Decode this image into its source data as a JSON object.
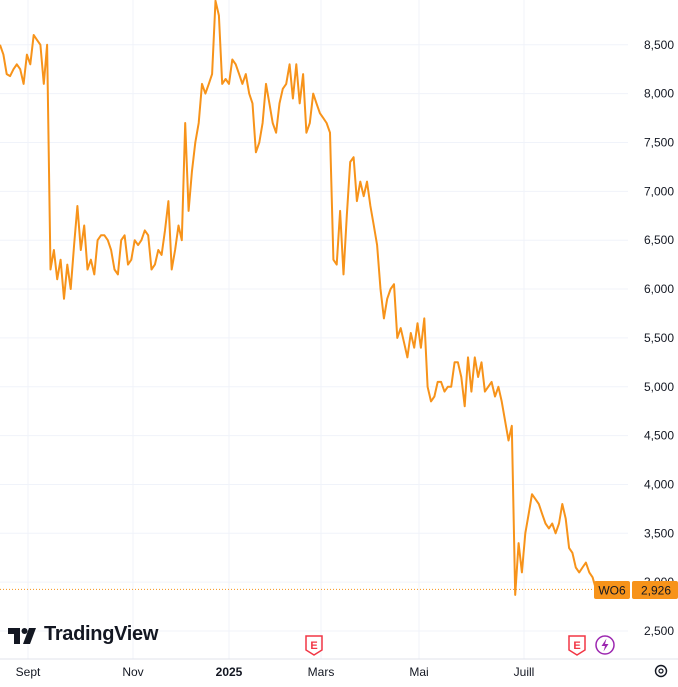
{
  "branding": {
    "logo_text": "TradingView"
  },
  "price_tag": {
    "symbol": "WO6",
    "value": "2,926"
  },
  "colors": {
    "line": "#f7931a",
    "grid": "#f0f3fa",
    "tag_bg": "#f7931a",
    "text": "#131722",
    "event_red": "#f23645",
    "event_purple": "#9c27b0"
  },
  "event_markers": [
    {
      "label": "E",
      "date": "Mars"
    },
    {
      "label": "E",
      "date": "Juill"
    }
  ],
  "chart_data": {
    "type": "line",
    "title": "",
    "xlabel": "",
    "ylabel": "",
    "ylim": [
      2350,
      8950
    ],
    "y_ticks": [
      "2,500",
      "3,000",
      "3,500",
      "4,000",
      "4,500",
      "5,000",
      "5,500",
      "6,000",
      "6,500",
      "7,000",
      "7,500",
      "8,000",
      "8,500"
    ],
    "y_tick_values": [
      2500,
      3000,
      3500,
      4000,
      4500,
      5000,
      5500,
      6000,
      6500,
      7000,
      7500,
      8000,
      8500
    ],
    "x_ticks": [
      {
        "label": "Sept",
        "bold": false
      },
      {
        "label": "Nov",
        "bold": false
      },
      {
        "label": "2025",
        "bold": true
      },
      {
        "label": "Mars",
        "bold": false
      },
      {
        "label": "Mai",
        "bold": false
      },
      {
        "label": "Juill",
        "bold": false
      }
    ],
    "grid": true,
    "last_value": 2926,
    "series": [
      {
        "values": [
          8500,
          8400,
          8200,
          8180,
          8250,
          8300,
          8250,
          8100,
          8400,
          8300,
          8600,
          8550,
          8500,
          8100,
          8500,
          6200,
          6400,
          6100,
          6300,
          5900,
          6250,
          6000,
          6450,
          6850,
          6400,
          6650,
          6200,
          6300,
          6150,
          6500,
          6550,
          6550,
          6500,
          6400,
          6200,
          6150,
          6500,
          6550,
          6250,
          6300,
          6500,
          6450,
          6500,
          6600,
          6550,
          6200,
          6250,
          6400,
          6350,
          6600,
          6900,
          6200,
          6400,
          6650,
          6500,
          7700,
          6800,
          7200,
          7500,
          7700,
          8100,
          8000,
          8100,
          8200,
          8950,
          8800,
          8100,
          8150,
          8100,
          8350,
          8300,
          8200,
          8100,
          8200,
          8000,
          7900,
          7400,
          7500,
          7700,
          8100,
          7900,
          7700,
          7600,
          7900,
          8050,
          8100,
          8300,
          7950,
          8300,
          7900,
          8200,
          7600,
          7700,
          8000,
          7900,
          7800,
          7750,
          7700,
          7600,
          6300,
          6250,
          6800,
          6150,
          6750,
          7300,
          7350,
          6900,
          7100,
          6950,
          7100,
          6850,
          6650,
          6450,
          6000,
          5700,
          5900,
          6000,
          6050,
          5500,
          5600,
          5450,
          5300,
          5550,
          5400,
          5650,
          5400,
          5700,
          5000,
          4850,
          4900,
          5050,
          5050,
          4950,
          5000,
          5000,
          5250,
          5250,
          5100,
          4800,
          5300,
          4950,
          5300,
          5100,
          5250,
          4950,
          5000,
          5050,
          4900,
          5000,
          4850,
          4650,
          4450,
          4600,
          2870,
          3400,
          3100,
          3500,
          3700,
          3900,
          3850,
          3800,
          3700,
          3600,
          3550,
          3600,
          3500,
          3600,
          3800,
          3650,
          3350,
          3300,
          3150,
          3100,
          3150,
          3200,
          3100,
          3050,
          2926
        ]
      }
    ]
  }
}
